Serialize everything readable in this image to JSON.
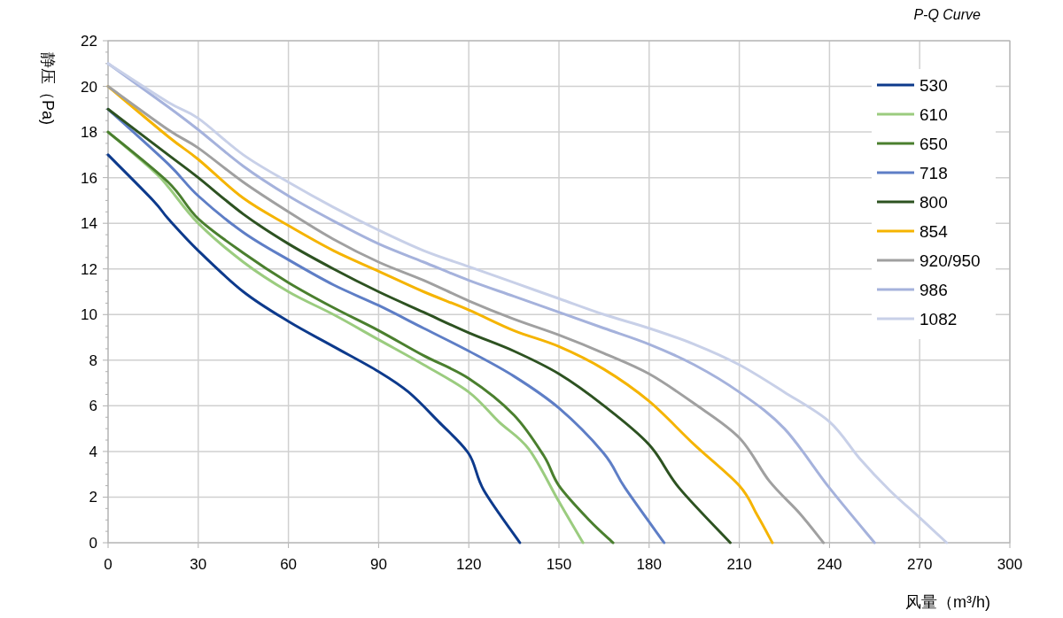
{
  "chart_data": {
    "type": "line",
    "title": "P-Q Curve",
    "xlabel": "风量（m³/h)",
    "ylabel": "静压（Pa)",
    "xlim": [
      0,
      300
    ],
    "xticks": [
      0,
      30,
      60,
      90,
      120,
      150,
      180,
      210,
      240,
      270,
      300
    ],
    "ylim": [
      0,
      22
    ],
    "yticks": [
      0,
      2,
      4,
      6,
      8,
      10,
      12,
      14,
      16,
      18,
      20,
      22
    ],
    "grid": true,
    "legend": "top right",
    "marker": "none",
    "line_style": "solid",
    "series": [
      {
        "name": "530",
        "color": "#0d3a8c",
        "x": [
          0,
          15,
          20,
          30,
          45,
          60,
          75,
          90,
          100,
          110,
          120,
          125,
          137
        ],
        "values": [
          17,
          15,
          14.2,
          12.8,
          11,
          9.7,
          8.6,
          7.5,
          6.6,
          5.3,
          3.9,
          2.3,
          0
        ]
      },
      {
        "name": "610",
        "color": "#9bcc7f",
        "x": [
          0,
          15,
          20,
          30,
          45,
          60,
          75,
          90,
          105,
          120,
          130,
          140,
          150,
          158
        ],
        "values": [
          18,
          16.3,
          15.6,
          14,
          12.3,
          11,
          10,
          8.9,
          7.8,
          6.6,
          5.3,
          4.1,
          1.8,
          0
        ]
      },
      {
        "name": "650",
        "color": "#4a7f2e",
        "x": [
          0,
          20,
          30,
          45,
          60,
          75,
          90,
          105,
          120,
          135,
          145,
          150,
          160,
          168
        ],
        "values": [
          18,
          15.8,
          14.2,
          12.7,
          11.4,
          10.3,
          9.3,
          8.2,
          7.2,
          5.6,
          3.8,
          2.5,
          1,
          0
        ]
      },
      {
        "name": "718",
        "color": "#5e7ec6",
        "x": [
          0,
          20,
          30,
          45,
          60,
          75,
          90,
          105,
          120,
          135,
          150,
          165,
          172,
          185
        ],
        "values": [
          19,
          16.6,
          15.2,
          13.6,
          12.4,
          11.3,
          10.4,
          9.4,
          8.4,
          7.3,
          5.9,
          3.9,
          2.4,
          0
        ]
      },
      {
        "name": "800",
        "color": "#2d5221",
        "x": [
          0,
          20,
          30,
          45,
          60,
          75,
          90,
          105,
          120,
          135,
          150,
          165,
          180,
          190,
          207
        ],
        "values": [
          19,
          17,
          16,
          14.4,
          13.1,
          12,
          11,
          10.1,
          9.2,
          8.4,
          7.4,
          6,
          4.3,
          2.4,
          0
        ]
      },
      {
        "name": "854",
        "color": "#f5b400",
        "x": [
          0,
          20,
          30,
          45,
          60,
          75,
          90,
          105,
          120,
          135,
          150,
          165,
          180,
          195,
          210,
          216,
          221
        ],
        "values": [
          20,
          17.8,
          16.8,
          15.1,
          13.9,
          12.8,
          11.9,
          11,
          10.2,
          9.3,
          8.6,
          7.6,
          6.2,
          4.3,
          2.5,
          1.2,
          0
        ]
      },
      {
        "name": "920/950",
        "color": "#a0a0a0",
        "x": [
          0,
          20,
          30,
          45,
          60,
          75,
          90,
          105,
          120,
          135,
          150,
          165,
          180,
          195,
          210,
          220,
          230,
          238
        ],
        "values": [
          20,
          18.1,
          17.3,
          15.8,
          14.5,
          13.3,
          12.3,
          11.5,
          10.6,
          9.8,
          9.1,
          8.3,
          7.4,
          6.1,
          4.6,
          2.7,
          1.3,
          0
        ]
      },
      {
        "name": "986",
        "color": "#a5b2dc",
        "x": [
          0,
          20,
          30,
          45,
          60,
          75,
          90,
          105,
          120,
          135,
          150,
          165,
          180,
          195,
          210,
          225,
          240,
          255
        ],
        "values": [
          21,
          19.1,
          18.1,
          16.5,
          15.2,
          14.1,
          13.1,
          12.3,
          11.5,
          10.8,
          10.1,
          9.4,
          8.7,
          7.8,
          6.6,
          5,
          2.4,
          0
        ]
      },
      {
        "name": "1082",
        "color": "#c8d0e8",
        "x": [
          0,
          20,
          30,
          45,
          60,
          75,
          90,
          105,
          120,
          135,
          150,
          165,
          180,
          195,
          210,
          225,
          240,
          250,
          260,
          270,
          279
        ],
        "values": [
          21,
          19.3,
          18.6,
          17,
          15.8,
          14.7,
          13.7,
          12.8,
          12.1,
          11.4,
          10.7,
          10,
          9.4,
          8.7,
          7.8,
          6.6,
          5.3,
          3.7,
          2.3,
          1.1,
          0
        ]
      }
    ]
  }
}
